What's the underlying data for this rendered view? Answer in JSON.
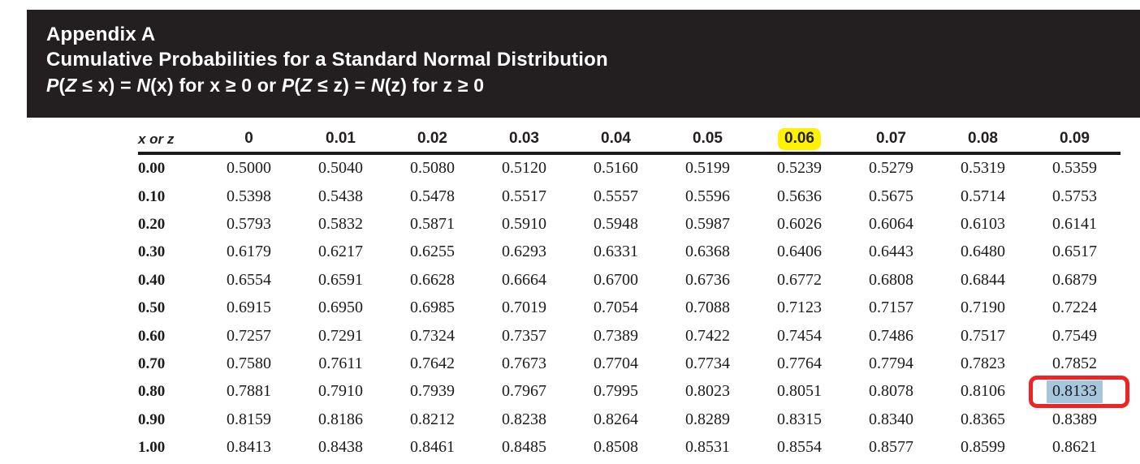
{
  "banner": {
    "line1": "Appendix A",
    "line2": "Cumulative Probabilities for a Standard Normal Distribution",
    "formula_segments": [
      {
        "text": "P",
        "italic": true
      },
      {
        "text": "(",
        "italic": false
      },
      {
        "text": "Z",
        "italic": true
      },
      {
        "text": " ≤ x) = ",
        "italic": false
      },
      {
        "text": "N",
        "italic": true
      },
      {
        "text": "(x) for x ≥ 0 or ",
        "italic": false
      },
      {
        "text": "P",
        "italic": true
      },
      {
        "text": "(",
        "italic": false
      },
      {
        "text": "Z",
        "italic": true
      },
      {
        "text": " ≤ z) = ",
        "italic": false
      },
      {
        "text": "N",
        "italic": true
      },
      {
        "text": "(z) for z ≥ 0",
        "italic": false
      }
    ]
  },
  "table": {
    "corner_label": "x or z",
    "column_headers": [
      "0",
      "0.01",
      "0.02",
      "0.03",
      "0.04",
      "0.05",
      "0.06",
      "0.07",
      "0.08",
      "0.09"
    ],
    "highlighted_column_index": 6,
    "highlighted_column_label": "0.06",
    "rows": [
      {
        "label": "0.00",
        "values": [
          "0.5000",
          "0.5040",
          "0.5080",
          "0.5120",
          "0.5160",
          "0.5199",
          "0.5239",
          "0.5279",
          "0.5319",
          "0.5359"
        ]
      },
      {
        "label": "0.10",
        "values": [
          "0.5398",
          "0.5438",
          "0.5478",
          "0.5517",
          "0.5557",
          "0.5596",
          "0.5636",
          "0.5675",
          "0.5714",
          "0.5753"
        ]
      },
      {
        "label": "0.20",
        "values": [
          "0.5793",
          "0.5832",
          "0.5871",
          "0.5910",
          "0.5948",
          "0.5987",
          "0.6026",
          "0.6064",
          "0.6103",
          "0.6141"
        ]
      },
      {
        "label": "0.30",
        "values": [
          "0.6179",
          "0.6217",
          "0.6255",
          "0.6293",
          "0.6331",
          "0.6368",
          "0.6406",
          "0.6443",
          "0.6480",
          "0.6517"
        ]
      },
      {
        "label": "0.40",
        "values": [
          "0.6554",
          "0.6591",
          "0.6628",
          "0.6664",
          "0.6700",
          "0.6736",
          "0.6772",
          "0.6808",
          "0.6844",
          "0.6879"
        ]
      },
      {
        "label": "0.50",
        "values": [
          "0.6915",
          "0.6950",
          "0.6985",
          "0.7019",
          "0.7054",
          "0.7088",
          "0.7123",
          "0.7157",
          "0.7190",
          "0.7224"
        ]
      },
      {
        "label": "0.60",
        "values": [
          "0.7257",
          "0.7291",
          "0.7324",
          "0.7357",
          "0.7389",
          "0.7422",
          "0.7454",
          "0.7486",
          "0.7517",
          "0.7549"
        ]
      },
      {
        "label": "0.70",
        "values": [
          "0.7580",
          "0.7611",
          "0.7642",
          "0.7673",
          "0.7704",
          "0.7734",
          "0.7764",
          "0.7794",
          "0.7823",
          "0.7852"
        ]
      },
      {
        "label": "0.80",
        "values": [
          "0.7881",
          "0.7910",
          "0.7939",
          "0.7967",
          "0.7995",
          "0.8023",
          "0.8051",
          "0.8078",
          "0.8106",
          "0.8133"
        ]
      },
      {
        "label": "0.90",
        "values": [
          "0.8159",
          "0.8186",
          "0.8212",
          "0.8238",
          "0.8264",
          "0.8289",
          "0.8315",
          "0.8340",
          "0.8365",
          "0.8389"
        ]
      },
      {
        "label": "1.00",
        "values": [
          "0.8413",
          "0.8438",
          "0.8461",
          "0.8485",
          "0.8508",
          "0.8531",
          "0.8554",
          "0.8577",
          "0.8599",
          "0.8621"
        ]
      }
    ],
    "highlighted_cell": {
      "row_label": "0.80",
      "column_index": 9,
      "column_label": "0.09",
      "value": "0.8133"
    }
  },
  "colors": {
    "banner_bg": "#231f20",
    "column_highlight": "#fff200",
    "cell_highlight_bg": "#a6c6de",
    "cell_highlight_border": "#ee2424"
  }
}
